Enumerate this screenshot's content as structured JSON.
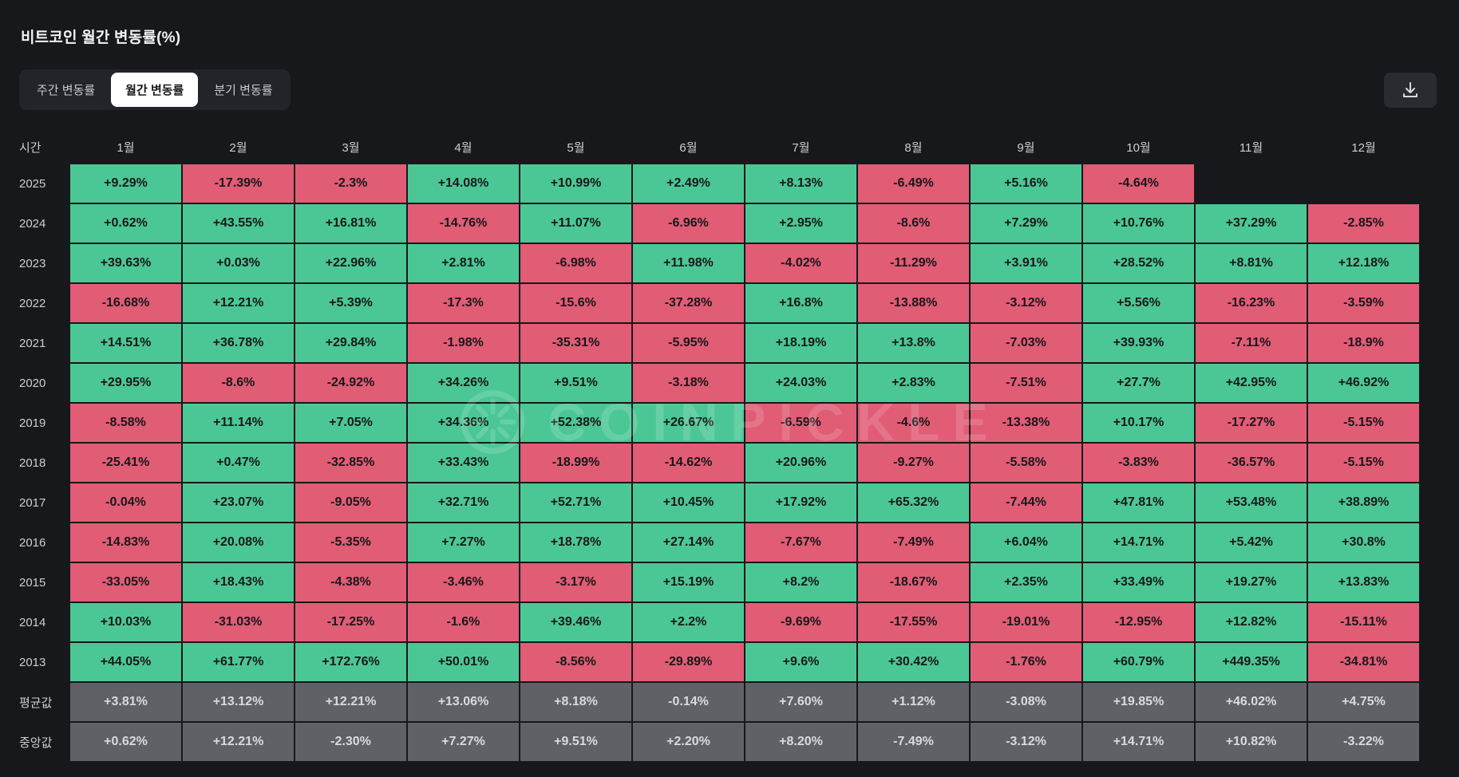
{
  "page": {
    "title": "비트코인 월간 변동률(%)"
  },
  "tabs": [
    {
      "id": "weekly",
      "label": "주간 변동률",
      "active": false
    },
    {
      "id": "monthly",
      "label": "월간 변동률",
      "active": true
    },
    {
      "id": "quarterly",
      "label": "분기 변동률",
      "active": false
    }
  ],
  "toolbar": {
    "download_icon": "download-icon"
  },
  "watermark": "COINPICKLE",
  "colors": {
    "background": "#17181B",
    "positive": "#4BC795",
    "negative": "#E15C75",
    "summary": "#606167"
  },
  "chart_data": {
    "type": "heatmap",
    "title": "비트코인 월간 변동률(%)",
    "corner_label": "시간",
    "columns": [
      "1월",
      "2월",
      "3월",
      "4월",
      "5월",
      "6월",
      "7월",
      "8월",
      "9월",
      "10월",
      "11월",
      "12월"
    ],
    "legend": "green = positive monthly change, red = negative monthly change, gray = summary rows",
    "rows": [
      {
        "label": "2025",
        "summary": false,
        "values": [
          "+9.29%",
          "-17.39%",
          "-2.3%",
          "+14.08%",
          "+10.99%",
          "+2.49%",
          "+8.13%",
          "-6.49%",
          "+5.16%",
          "-4.64%",
          null,
          null
        ]
      },
      {
        "label": "2024",
        "summary": false,
        "values": [
          "+0.62%",
          "+43.55%",
          "+16.81%",
          "-14.76%",
          "+11.07%",
          "-6.96%",
          "+2.95%",
          "-8.6%",
          "+7.29%",
          "+10.76%",
          "+37.29%",
          "-2.85%"
        ]
      },
      {
        "label": "2023",
        "summary": false,
        "values": [
          "+39.63%",
          "+0.03%",
          "+22.96%",
          "+2.81%",
          "-6.98%",
          "+11.98%",
          "-4.02%",
          "-11.29%",
          "+3.91%",
          "+28.52%",
          "+8.81%",
          "+12.18%"
        ]
      },
      {
        "label": "2022",
        "summary": false,
        "values": [
          "-16.68%",
          "+12.21%",
          "+5.39%",
          "-17.3%",
          "-15.6%",
          "-37.28%",
          "+16.8%",
          "-13.88%",
          "-3.12%",
          "+5.56%",
          "-16.23%",
          "-3.59%"
        ]
      },
      {
        "label": "2021",
        "summary": false,
        "values": [
          "+14.51%",
          "+36.78%",
          "+29.84%",
          "-1.98%",
          "-35.31%",
          "-5.95%",
          "+18.19%",
          "+13.8%",
          "-7.03%",
          "+39.93%",
          "-7.11%",
          "-18.9%"
        ]
      },
      {
        "label": "2020",
        "summary": false,
        "values": [
          "+29.95%",
          "-8.6%",
          "-24.92%",
          "+34.26%",
          "+9.51%",
          "-3.18%",
          "+24.03%",
          "+2.83%",
          "-7.51%",
          "+27.7%",
          "+42.95%",
          "+46.92%"
        ]
      },
      {
        "label": "2019",
        "summary": false,
        "values": [
          "-8.58%",
          "+11.14%",
          "+7.05%",
          "+34.36%",
          "+52.38%",
          "+26.67%",
          "-6.59%",
          "-4.6%",
          "-13.38%",
          "+10.17%",
          "-17.27%",
          "-5.15%"
        ]
      },
      {
        "label": "2018",
        "summary": false,
        "values": [
          "-25.41%",
          "+0.47%",
          "-32.85%",
          "+33.43%",
          "-18.99%",
          "-14.62%",
          "+20.96%",
          "-9.27%",
          "-5.58%",
          "-3.83%",
          "-36.57%",
          "-5.15%"
        ]
      },
      {
        "label": "2017",
        "summary": false,
        "values": [
          "-0.04%",
          "+23.07%",
          "-9.05%",
          "+32.71%",
          "+52.71%",
          "+10.45%",
          "+17.92%",
          "+65.32%",
          "-7.44%",
          "+47.81%",
          "+53.48%",
          "+38.89%"
        ]
      },
      {
        "label": "2016",
        "summary": false,
        "values": [
          "-14.83%",
          "+20.08%",
          "-5.35%",
          "+7.27%",
          "+18.78%",
          "+27.14%",
          "-7.67%",
          "-7.49%",
          "+6.04%",
          "+14.71%",
          "+5.42%",
          "+30.8%"
        ]
      },
      {
        "label": "2015",
        "summary": false,
        "values": [
          "-33.05%",
          "+18.43%",
          "-4.38%",
          "-3.46%",
          "-3.17%",
          "+15.19%",
          "+8.2%",
          "-18.67%",
          "+2.35%",
          "+33.49%",
          "+19.27%",
          "+13.83%"
        ]
      },
      {
        "label": "2014",
        "summary": false,
        "values": [
          "+10.03%",
          "-31.03%",
          "-17.25%",
          "-1.6%",
          "+39.46%",
          "+2.2%",
          "-9.69%",
          "-17.55%",
          "-19.01%",
          "-12.95%",
          "+12.82%",
          "-15.11%"
        ]
      },
      {
        "label": "2013",
        "summary": false,
        "values": [
          "+44.05%",
          "+61.77%",
          "+172.76%",
          "+50.01%",
          "-8.56%",
          "-29.89%",
          "+9.6%",
          "+30.42%",
          "-1.76%",
          "+60.79%",
          "+449.35%",
          "-34.81%"
        ]
      },
      {
        "label": "평균값",
        "summary": true,
        "values": [
          "+3.81%",
          "+13.12%",
          "+12.21%",
          "+13.06%",
          "+8.18%",
          "-0.14%",
          "+7.60%",
          "+1.12%",
          "-3.08%",
          "+19.85%",
          "+46.02%",
          "+4.75%"
        ]
      },
      {
        "label": "중앙값",
        "summary": true,
        "values": [
          "+0.62%",
          "+12.21%",
          "-2.30%",
          "+7.27%",
          "+9.51%",
          "+2.20%",
          "+8.20%",
          "-7.49%",
          "-3.12%",
          "+14.71%",
          "+10.82%",
          "-3.22%"
        ]
      }
    ]
  }
}
